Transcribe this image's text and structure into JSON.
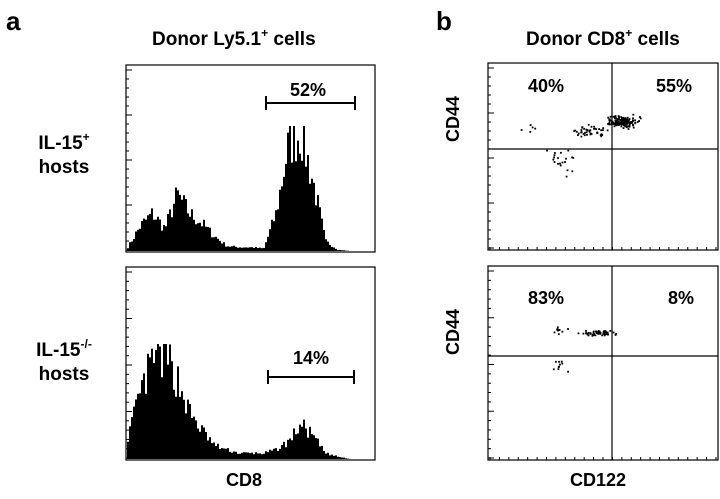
{
  "figure": {
    "panel_a": {
      "letter": "a",
      "title": "Donor Ly5.1",
      "title_sup": "+",
      "title_tail": " cells",
      "xlabel": "CD8",
      "hosts": [
        {
          "name": "IL-15",
          "sup": "+",
          "line2": "hosts",
          "gate_percent": "52%"
        },
        {
          "name": "IL-15",
          "sup": "-/-",
          "line2": "hosts",
          "gate_percent": "14%"
        }
      ]
    },
    "panel_b": {
      "letter": "b",
      "title": "Donor CD8",
      "title_sup": "+",
      "title_tail": " cells",
      "xlabel": "CD122",
      "ylabel": "CD44",
      "plots": [
        {
          "upper_left": "40%",
          "upper_right": "55%"
        },
        {
          "upper_left": "83%",
          "upper_right": "8%"
        }
      ]
    }
  },
  "chart_data": [
    {
      "type": "area",
      "title": "Donor Ly5.1+ cells — IL-15+ hosts",
      "xlabel": "CD8",
      "x": [
        0,
        0.05,
        0.1,
        0.15,
        0.2,
        0.25,
        0.3,
        0.35,
        0.4,
        0.45,
        0.5,
        0.55,
        0.6,
        0.65,
        0.7,
        0.75,
        0.8,
        0.85,
        0.9,
        0.95,
        1.0
      ],
      "values": [
        3,
        20,
        30,
        18,
        45,
        30,
        22,
        12,
        4,
        3,
        3,
        2,
        30,
        85,
        95,
        55,
        8,
        1,
        0,
        0,
        0
      ],
      "gate": {
        "label": "52%",
        "range": [
          0.6,
          0.9
        ]
      }
    },
    {
      "type": "area",
      "title": "Donor Ly5.1+ cells — IL-15-/- hosts",
      "xlabel": "CD8",
      "x": [
        0,
        0.05,
        0.1,
        0.15,
        0.2,
        0.25,
        0.3,
        0.35,
        0.4,
        0.45,
        0.5,
        0.55,
        0.6,
        0.65,
        0.7,
        0.75,
        0.8,
        0.85,
        0.9,
        0.95,
        1.0
      ],
      "values": [
        20,
        55,
        85,
        90,
        70,
        40,
        25,
        12,
        8,
        5,
        5,
        5,
        8,
        15,
        30,
        20,
        5,
        2,
        0,
        0,
        0
      ],
      "gate": {
        "label": "14%",
        "range": [
          0.6,
          0.9
        ]
      }
    },
    {
      "type": "scatter",
      "title": "Donor CD8+ cells — IL-15+ hosts",
      "xlabel": "CD122",
      "ylabel": "CD44",
      "quadrant_percent": {
        "upper_left": "40%",
        "upper_right": "55%"
      }
    },
    {
      "type": "scatter",
      "title": "Donor CD8+ cells — IL-15-/- hosts",
      "xlabel": "CD122",
      "ylabel": "CD44",
      "quadrant_percent": {
        "upper_left": "83%",
        "upper_right": "8%"
      }
    }
  ]
}
